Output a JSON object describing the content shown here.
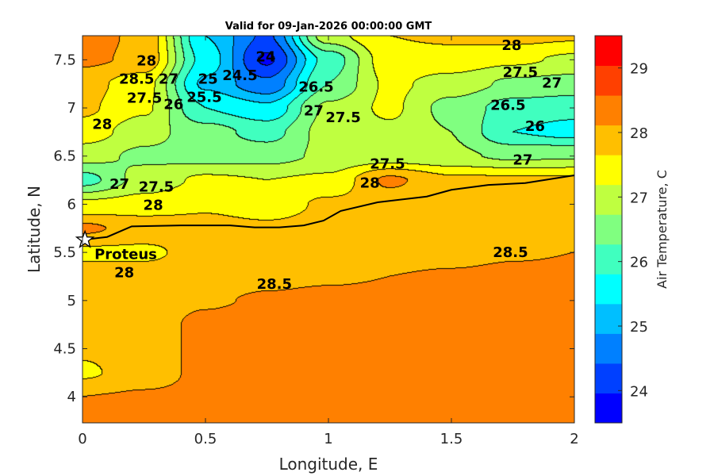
{
  "chart_data": {
    "type": "contourf",
    "title": "Valid for 09-Jan-2026 00:00:00 GMT",
    "xlabel": "Longitude, E",
    "ylabel": "Latitude, N",
    "xlim": [
      0,
      2
    ],
    "ylim": [
      3.73,
      7.75
    ],
    "xticks": [
      0,
      0.5,
      1,
      1.5,
      2
    ],
    "xtick_labels": [
      "0",
      "0.5",
      "1",
      "1.5",
      "2"
    ],
    "yticks": [
      4,
      4.5,
      5,
      5.5,
      6,
      6.5,
      7,
      7.5
    ],
    "ytick_labels": [
      "4",
      "4.5",
      "5",
      "5.5",
      "6",
      "6.5",
      "7",
      "7.5"
    ],
    "colorbar": {
      "label": "Air Temperature, C",
      "range": [
        23.5,
        29.5
      ],
      "ticks": [
        24,
        25,
        26,
        27,
        28,
        29
      ],
      "tick_labels": [
        "24",
        "25",
        "26",
        "27",
        "28",
        "29"
      ],
      "colors": [
        "#0000ff",
        "#0040ff",
        "#0080ff",
        "#00bfff",
        "#00ffff",
        "#40ffbf",
        "#80ff80",
        "#bfff40",
        "#ffff00",
        "#ffbf00",
        "#ff8000",
        "#ff4000",
        "#ff0000"
      ]
    },
    "level_step": 0.5,
    "grid": {
      "lon": [
        0,
        0.25,
        0.5,
        0.75,
        1.0,
        1.25,
        1.5,
        1.75,
        2.0
      ],
      "lat": [
        7.75,
        7.5,
        7.25,
        7.0,
        6.75,
        6.5,
        6.25,
        6.0,
        5.75,
        5.5,
        5.25,
        5.0,
        4.75,
        4.5,
        4.25,
        4.0,
        3.75
      ],
      "temperature": [
        [
          28.7,
          28.4,
          25.5,
          24.4,
          27.3,
          28.0,
          28.1,
          28.2,
          28.1
        ],
        [
          28.6,
          28.4,
          25.8,
          23.9,
          26.2,
          27.8,
          27.8,
          27.6,
          27.4
        ],
        [
          28.2,
          27.7,
          25.4,
          24.6,
          26.5,
          27.6,
          27.3,
          26.9,
          26.8
        ],
        [
          28.1,
          27.6,
          26.0,
          25.6,
          27.1,
          27.6,
          26.8,
          26.3,
          26.2
        ],
        [
          27.8,
          27.2,
          26.7,
          26.3,
          27.2,
          27.4,
          27.0,
          26.0,
          25.8
        ],
        [
          27.2,
          26.9,
          26.8,
          26.8,
          27.1,
          27.2,
          27.1,
          26.9,
          26.95
        ],
        [
          26.3,
          27.2,
          27.6,
          27.5,
          27.6,
          28.6,
          28.1,
          28.1,
          28.1
        ],
        [
          27.6,
          27.7,
          27.9,
          27.7,
          28.1,
          28.2,
          28.2,
          28.2,
          28.2
        ],
        [
          28.6,
          28.3,
          28.2,
          28.1,
          28.2,
          28.2,
          28.2,
          28.2,
          28.2
        ],
        [
          27.9,
          27.9,
          28.2,
          28.2,
          28.3,
          28.3,
          28.35,
          28.45,
          28.5
        ],
        [
          28.2,
          28.2,
          28.3,
          28.4,
          28.45,
          28.5,
          28.55,
          28.6,
          28.6
        ],
        [
          28.2,
          28.3,
          28.45,
          28.55,
          28.6,
          28.6,
          28.65,
          28.7,
          28.7
        ],
        [
          28.2,
          28.3,
          28.6,
          28.7,
          28.7,
          28.7,
          28.7,
          28.7,
          28.7
        ],
        [
          28.1,
          28.3,
          28.6,
          28.7,
          28.7,
          28.7,
          28.7,
          28.7,
          28.7
        ],
        [
          27.9,
          28.3,
          28.6,
          28.7,
          28.7,
          28.7,
          28.7,
          28.7,
          28.7
        ],
        [
          28.5,
          28.55,
          28.6,
          28.7,
          28.7,
          28.7,
          28.7,
          28.7,
          28.7
        ],
        [
          28.7,
          28.7,
          28.7,
          28.7,
          28.7,
          28.7,
          28.7,
          28.7,
          28.7
        ]
      ]
    },
    "coastline": [
      [
        0,
        5.63
      ],
      [
        0.1,
        5.66
      ],
      [
        0.2,
        5.77
      ],
      [
        0.4,
        5.78
      ],
      [
        0.6,
        5.78
      ],
      [
        0.7,
        5.76
      ],
      [
        0.8,
        5.76
      ],
      [
        0.9,
        5.78
      ],
      [
        0.98,
        5.83
      ],
      [
        1.05,
        5.93
      ],
      [
        1.2,
        6.02
      ],
      [
        1.4,
        6.08
      ],
      [
        1.5,
        6.15
      ],
      [
        1.65,
        6.2
      ],
      [
        1.8,
        6.22
      ],
      [
        2,
        6.3
      ]
    ],
    "contour_labels": [
      {
        "text": "24",
        "lon": 0.745,
        "lat": 7.53
      },
      {
        "text": "24.5",
        "lon": 0.64,
        "lat": 7.34
      },
      {
        "text": "25",
        "lon": 0.51,
        "lat": 7.3
      },
      {
        "text": "25.5",
        "lon": 0.49,
        "lat": 7.14
      },
      {
        "text": "26",
        "lon": 0.43,
        "lat": 7.1
      },
      {
        "text": "28.5",
        "lon": 0.22,
        "lat": 7.3
      },
      {
        "text": "28",
        "lon": 0.28,
        "lat": 7.37
      },
      {
        "text": "27.5",
        "lon": 0.27,
        "lat": 7.15
      },
      {
        "text": "27",
        "lon": 0.34,
        "lat": 7.24
      },
      {
        "text": "28",
        "lon": 0.08,
        "lat": 6.83
      },
      {
        "text": "26.5",
        "lon": 0.95,
        "lat": 7.22
      },
      {
        "text": "27",
        "lon": 0.94,
        "lat": 6.97
      },
      {
        "text": "27.5",
        "lon": 1.06,
        "lat": 6.9
      },
      {
        "text": "28",
        "lon": 1.745,
        "lat": 7.65
      },
      {
        "text": "27.5",
        "lon": 1.78,
        "lat": 7.37
      },
      {
        "text": "27",
        "lon": 1.87,
        "lat": 7.26
      },
      {
        "text": "26.5",
        "lon": 1.73,
        "lat": 7.03
      },
      {
        "text": "26",
        "lon": 1.84,
        "lat": 6.81
      },
      {
        "text": "27",
        "lon": 1.79,
        "lat": 6.46
      },
      {
        "text": "27.5",
        "lon": 1.24,
        "lat": 6.42
      },
      {
        "text": "28",
        "lon": 1.15,
        "lat": 6.27
      },
      {
        "text": "27",
        "lon": 0.15,
        "lat": 6.21
      },
      {
        "text": "27.5",
        "lon": 0.3,
        "lat": 6.18
      },
      {
        "text": "28",
        "lon": 0.26,
        "lat": 6.06
      },
      {
        "text": "28",
        "lon": 0.17,
        "lat": 5.39
      },
      {
        "text": "28.5",
        "lon": 0.78,
        "lat": 5.17
      },
      {
        "text": "28.5",
        "lon": 1.74,
        "lat": 5.5
      }
    ],
    "station": {
      "name": "Proteus",
      "lon": 0.01,
      "lat": 5.63
    }
  }
}
